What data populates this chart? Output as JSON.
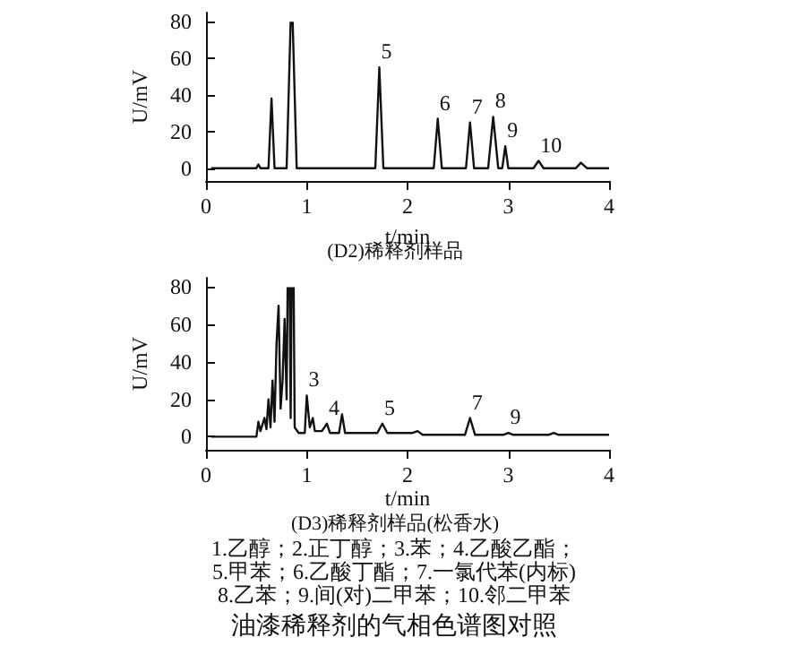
{
  "chart_data": [
    {
      "type": "line",
      "title": "(D2)稀释剂样品",
      "xlabel": "t/min",
      "ylabel": "U/mV",
      "xlim": [
        0,
        4
      ],
      "xticks": [
        0,
        1,
        2,
        3,
        4
      ],
      "ylim": [
        -7,
        85
      ],
      "yticks": [
        0,
        20,
        40,
        60,
        80
      ],
      "marker": "none",
      "line_style": "solid",
      "series": [
        {
          "color": "#111111",
          "x": [
            0.05,
            0.5,
            0.52,
            0.54,
            0.62,
            0.65,
            0.68,
            0.8,
            0.84,
            0.85,
            0.86,
            0.9,
            1.0,
            1.68,
            1.72,
            1.76,
            2.26,
            2.3,
            2.34,
            2.58,
            2.62,
            2.66,
            2.8,
            2.85,
            2.9,
            2.94,
            2.97,
            3.0,
            3.25,
            3.3,
            3.35,
            3.67,
            3.72,
            3.78,
            4.0
          ],
          "values": [
            0,
            0,
            2,
            0,
            0,
            38,
            0,
            0,
            80,
            null,
            80,
            0,
            0,
            0,
            55,
            0,
            0,
            27,
            0,
            0,
            25,
            0,
            0,
            28,
            0,
            0,
            12,
            0,
            0,
            4,
            0,
            0,
            3,
            0,
            0
          ]
        }
      ],
      "annotations": [
        {
          "text": "5",
          "x": 1.72,
          "y": 55
        },
        {
          "text": "6",
          "x": 2.3,
          "y": 27
        },
        {
          "text": "7",
          "x": 2.62,
          "y": 25
        },
        {
          "text": "8",
          "x": 2.85,
          "y": 28
        },
        {
          "text": "9",
          "x": 2.97,
          "y": 12
        },
        {
          "text": "10",
          "x": 3.3,
          "y": 4
        }
      ]
    },
    {
      "type": "line",
      "title": "(D3)稀释剂样品(松香水)",
      "xlabel": "t/min",
      "ylabel": "U/mV",
      "xlim": [
        0,
        4
      ],
      "xticks": [
        0,
        1,
        2,
        3,
        4
      ],
      "ylim": [
        -7,
        85
      ],
      "yticks": [
        0,
        20,
        40,
        60,
        80
      ],
      "marker": "none",
      "line_style": "solid",
      "series": [
        {
          "color": "#111111",
          "x": [
            0.05,
            0.5,
            0.52,
            0.54,
            0.58,
            0.6,
            0.62,
            0.64,
            0.66,
            0.68,
            0.7,
            0.72,
            0.74,
            0.76,
            0.78,
            0.8,
            0.81,
            0.82,
            0.83,
            0.84,
            0.85,
            0.86,
            0.87,
            0.88,
            0.92,
            0.98,
            1.0,
            1.03,
            1.06,
            1.08,
            1.15,
            1.2,
            1.23,
            1.32,
            1.35,
            1.38,
            1.7,
            1.75,
            1.8,
            2.05,
            2.1,
            2.15,
            2.57,
            2.62,
            2.67,
            2.95,
            3.0,
            3.05,
            3.4,
            3.45,
            3.5,
            4.0
          ],
          "values": [
            0,
            0,
            8,
            3,
            10,
            4,
            20,
            5,
            30,
            8,
            50,
            70,
            15,
            30,
            63,
            20,
            80,
            null,
            80,
            10,
            80,
            null,
            80,
            5,
            2,
            2,
            22,
            5,
            10,
            3,
            3,
            7,
            2,
            2,
            12,
            2,
            2,
            7,
            2,
            2,
            3,
            1,
            1,
            10,
            1,
            1,
            2,
            1,
            1,
            2,
            1,
            1
          ]
        }
      ],
      "annotations": [
        {
          "text": "3",
          "x": 1.0,
          "y": 22
        },
        {
          "text": "4",
          "x": 1.2,
          "y": 7
        },
        {
          "text": "5",
          "x": 1.75,
          "y": 7
        },
        {
          "text": "7",
          "x": 2.62,
          "y": 10
        },
        {
          "text": "9",
          "x": 3.0,
          "y": 2
        },
        "1.乙醇；2.正丁醇；3.苯；4.乙酸乙酯；",
        "5.甲苯；6.乙酸丁酯；7.一氯代苯(内标)",
        "8.乙苯；9.间(对)二甲苯；10.邻二甲苯",
        "油漆稀释剂的气相色谱图对照"
      ]
    }
  ]
}
